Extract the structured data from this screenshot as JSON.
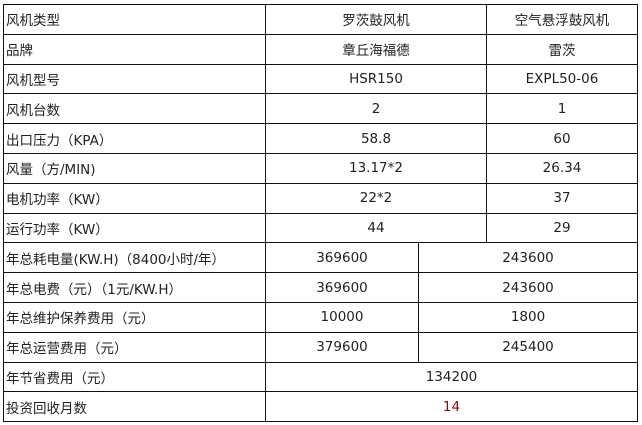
{
  "header": {
    "label": "风机类型",
    "col_a": "罗茨鼓风机",
    "col_b": "空气悬浮鼓风机"
  },
  "spec_rows": [
    {
      "label": "品牌",
      "a": "章丘海福德",
      "b": "雷茨"
    },
    {
      "label": "风机型号",
      "a": "HSR150",
      "b": "EXPL50-06"
    },
    {
      "label": "风机台数",
      "a": "2",
      "b": "1"
    },
    {
      "label": "出口压力（KPA）",
      "a": "58.8",
      "b": "60"
    },
    {
      "label": "风量（方/MIN)",
      "a": "13.17*2",
      "b": "26.34"
    },
    {
      "label": "电机功率（KW）",
      "a": "22*2",
      "b": "37"
    },
    {
      "label": "运行功率（KW）",
      "a": "44",
      "b": "29"
    }
  ],
  "cost_rows": [
    {
      "label": "年总耗电量(KW.H)（8400小时/年）",
      "a": "369600",
      "b": "243600"
    },
    {
      "label": "年总电费（元）（1元/KW.H）",
      "a": "369600",
      "b": "243600"
    },
    {
      "label": "年总维护保养费用（元）",
      "a": "10000",
      "b": "1800"
    },
    {
      "label": "年总运营费用（元）",
      "a": "379600",
      "b": "245400"
    }
  ],
  "summary_rows": [
    {
      "label": "年节省费用（元）",
      "value": "134200"
    },
    {
      "label": "投资回收月数",
      "value": "14"
    }
  ]
}
